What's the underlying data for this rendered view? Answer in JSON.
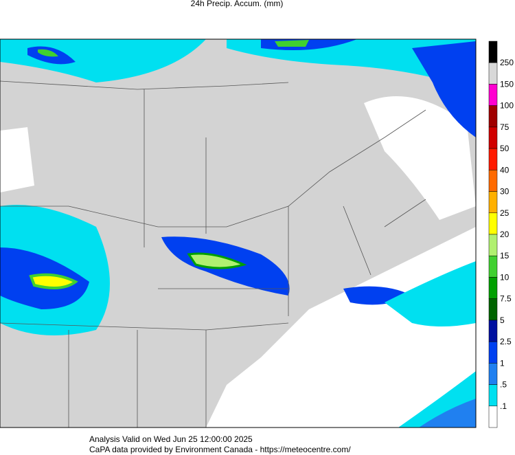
{
  "title": "24h Precip. Accum. (mm)",
  "legend": {
    "labels": [
      "250",
      "150",
      "100",
      "75",
      "50",
      "40",
      "30",
      "25",
      "20",
      "15",
      "10",
      "7.5",
      "5",
      "2.5",
      "1",
      ".5",
      ".1"
    ],
    "colors": [
      "#000000",
      "#d8d8d8",
      "#ff00d0",
      "#a00000",
      "#d00000",
      "#ff1a00",
      "#ff6a00",
      "#ffb000",
      "#ffff00",
      "#b0f070",
      "#40d030",
      "#00a000",
      "#006400",
      "#0010a0",
      "#0040f0",
      "#2080f0",
      "#00e0f0",
      "#ffffff"
    ]
  },
  "footer": {
    "line1": "Analysis Valid on Wed Jun 25 12:00:00 2025",
    "line2": "CaPA data provided by Environment Canada - https://meteocentre.com/"
  }
}
